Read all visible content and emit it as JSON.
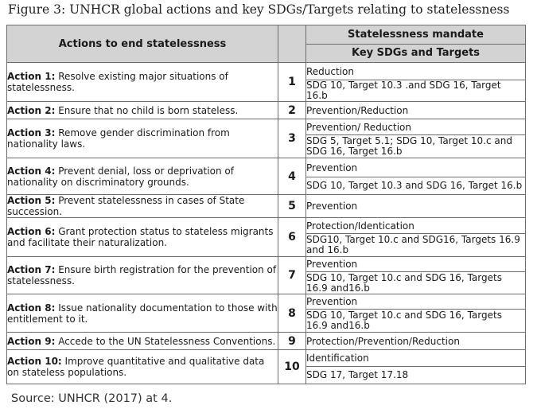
{
  "figure_title": "Figure 3: UNHCR global actions and key SDGs/Targets relating to statelessness",
  "header": {
    "actions": "Actions to end statelessness",
    "mandate": "Statelessness mandate",
    "sdgs": "Key SDGs and Targets"
  },
  "rows": [
    {
      "label": "Action 1:",
      "text": " Resolve existing major situations of statelessness.",
      "number": "1",
      "mandate": "Reduction",
      "targets": "SDG 10, Target 10.3 .and SDG 16, Target 16.b"
    },
    {
      "label": "Action 2:",
      "text": " Ensure that no child is born stateless.",
      "number": "2",
      "mandate": "Prevention/Reduction",
      "targets": ""
    },
    {
      "label": "Action 3:",
      "text": " Remove gender discrimination from nationality laws.",
      "number": "3",
      "mandate": "Prevention/ Reduction",
      "targets": "SDG 5, Target 5.1; SDG 10, Target 10.c and SDG 16, Target 16.b"
    },
    {
      "label": "Action 4:",
      "text": " Prevent denial, loss or deprivation of nationality on discriminatory grounds.",
      "number": "4",
      "mandate": "Prevention",
      "targets": "SDG 10, Target 10.3 and SDG 16, Target 16.b"
    },
    {
      "label": "Action 5:",
      "text": " Prevent statelessness in cases of State succession.",
      "number": "5",
      "mandate": "Prevention",
      "targets": ""
    },
    {
      "label": "Action 6:",
      "text": " Grant protection status to stateless migrants and facilitate their naturalization.",
      "number": "6",
      "mandate": "Protection/Identication",
      "targets": "SDG10, Target 10.c and SDG16, Targets 16.9 and 16.b"
    },
    {
      "label": "Action 7:",
      "text": " Ensure birth registration for the prevention of statelessness.",
      "number": "7",
      "mandate": "Prevention",
      "targets": "SDG 10, Target 10.c and SDG 16, Targets 16.9 and16.b"
    },
    {
      "label": "Action 8:",
      "text": " Issue nationality documentation to those with entitlement to it.",
      "number": "8",
      "mandate": "Prevention",
      "targets": "SDG 10, Target 10.c and SDG 16, Targets 16.9 and16.b"
    },
    {
      "label": "Action 9:",
      "text": " Accede to the UN Statelessness Conventions.",
      "number": "9",
      "mandate": "Protection/Prevention/Reduction",
      "targets": ""
    },
    {
      "label": "Action 10:",
      "text": " Improve quantitative and qualitative data on stateless populations.",
      "number": "10",
      "mandate": "Identification",
      "targets": "SDG 17, Target 17.18"
    }
  ],
  "source": "Source: UNHCR (2017) at 4."
}
